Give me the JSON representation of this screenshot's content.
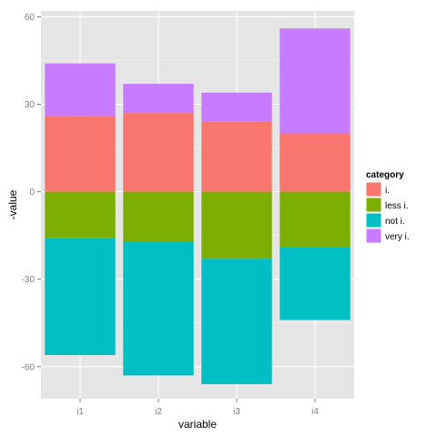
{
  "chart_data": {
    "type": "bar",
    "stacked": true,
    "categories": [
      "i1",
      "i2",
      "i3",
      "i4"
    ],
    "xlabel": "variable",
    "ylabel": "-value",
    "ylim": [
      -71,
      62
    ],
    "yticks": [
      -60,
      -30,
      0,
      30,
      60
    ],
    "grid": true,
    "legend_position": "right",
    "legend_title": "category",
    "series": [
      {
        "name": "i.",
        "color": "#F8766D",
        "direction": "positive",
        "values": [
          26,
          27,
          24,
          20
        ]
      },
      {
        "name": "very i.",
        "color": "#C77CFF",
        "direction": "positive",
        "values": [
          18,
          10,
          10,
          36
        ]
      },
      {
        "name": "less i.",
        "color": "#7CAE00",
        "direction": "negative",
        "values": [
          -16,
          -17,
          -23,
          -19
        ]
      },
      {
        "name": "not i.",
        "color": "#00BFC4",
        "direction": "negative",
        "values": [
          -40,
          -46,
          -43,
          -25
        ]
      }
    ],
    "legend_order": [
      "i.",
      "less i.",
      "not i.",
      "very i."
    ]
  }
}
